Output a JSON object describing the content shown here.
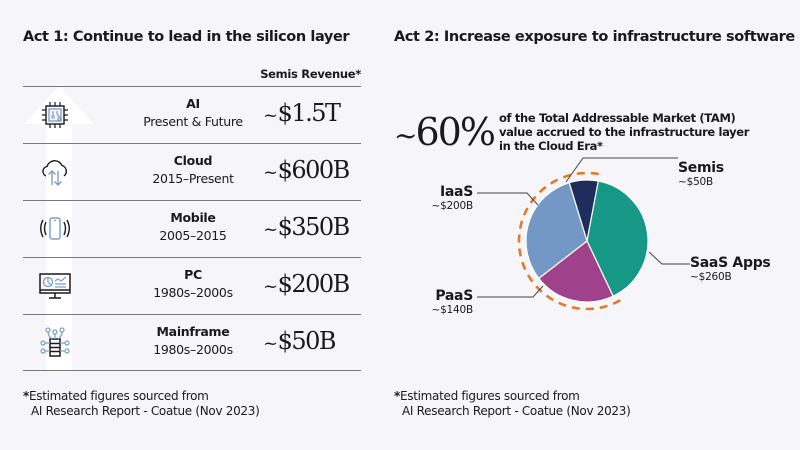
{
  "act1": {
    "title": "Act 1: Continue to lead in the silicon layer",
    "column_header": "Semis Revenue*",
    "rows": [
      {
        "name": "AI",
        "period": "Present & Future",
        "revenue_tilde": "~",
        "revenue": "$1.5T",
        "icon": "ai-chip-icon"
      },
      {
        "name": "Cloud",
        "period": "2015–Present",
        "revenue_tilde": "~",
        "revenue": "$600B",
        "icon": "cloud-sync-icon"
      },
      {
        "name": "Mobile",
        "period": "2005–2015",
        "revenue_tilde": "~",
        "revenue": "$350B",
        "icon": "mobile-phone-icon"
      },
      {
        "name": "PC",
        "period": "1980s–2000s",
        "revenue_tilde": "~",
        "revenue": "$200B",
        "icon": "desktop-monitor-icon"
      },
      {
        "name": "Mainframe",
        "period": "1980s–2000s",
        "revenue_tilde": "~",
        "revenue": "$50B",
        "icon": "mainframe-server-icon"
      }
    ],
    "footnote": {
      "star": "*",
      "line1": "Estimated figures sourced from",
      "line2": "AI Research Report - Coatue (Nov 2023)"
    }
  },
  "act2": {
    "title": "Act 2: Increase exposure to infrastructure software",
    "highlight": {
      "tilde": "~",
      "value": "60%",
      "line1": "of the Total Addressable Market (TAM)",
      "line2": "value accrued to the infrastructure layer",
      "line3": "in the Cloud Era*"
    },
    "footnote": {
      "star": "*",
      "line1": "Estimated figures sourced from",
      "line2": "AI Research Report - Coatue (Nov 2023)"
    }
  },
  "chart_data": {
    "type": "pie",
    "title": "",
    "unit": "USD billions (approx.)",
    "slices": [
      {
        "label": "Semis",
        "value": 50,
        "display": "~$50B",
        "color": "#1f2d5c",
        "infrastructure": true
      },
      {
        "label": "SaaS Apps",
        "value": 260,
        "display": "~$260B",
        "color": "#179785",
        "infrastructure": false
      },
      {
        "label": "PaaS",
        "value": 140,
        "display": "~$140B",
        "color": "#a0428b",
        "infrastructure": true
      },
      {
        "label": "IaaS",
        "value": 200,
        "display": "~$200B",
        "color": "#7398c6",
        "infrastructure": true
      }
    ],
    "highlight_ring": {
      "description": "dashed ring around infrastructure layer slices",
      "color": "#e07b2a"
    }
  },
  "colors": {
    "background": "#f6f6fa",
    "icon_stroke": "#1a1a1a",
    "icon_accent": "#7a9dc9",
    "rule": "#7a7a7a",
    "leader": "#444444"
  }
}
